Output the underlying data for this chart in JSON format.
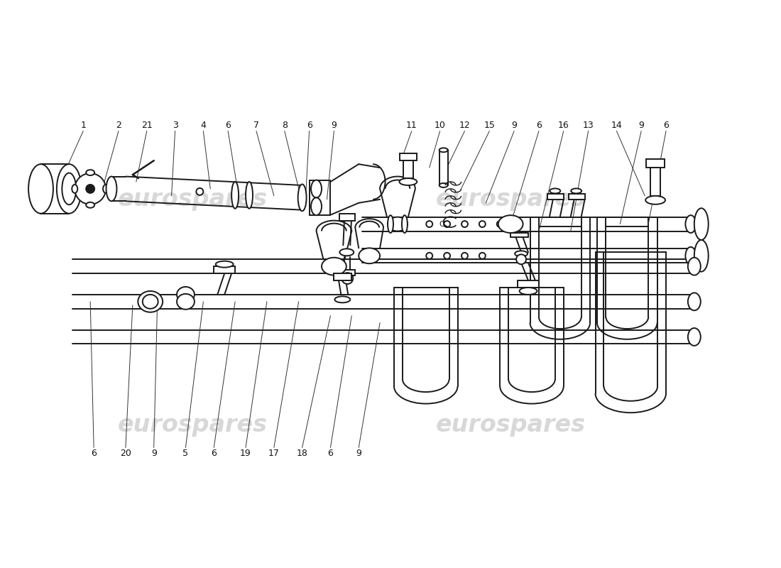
{
  "background_color": "#ffffff",
  "watermark_text": "eurospares",
  "watermark_color": "#d8d8d8",
  "line_color": "#1a1a1a",
  "line_width": 1.4,
  "label_fontsize": 9,
  "fig_width": 11.0,
  "fig_height": 8.0,
  "xlim": [
    0,
    110
  ],
  "ylim": [
    0,
    80
  ],
  "top_labels": [
    [
      "1",
      11.5,
      62.5,
      8.5,
      54.5
    ],
    [
      "2",
      16.5,
      62.5,
      14.5,
      54
    ],
    [
      "21",
      20.5,
      62.5,
      19.0,
      54
    ],
    [
      "3",
      24.5,
      62.5,
      24.0,
      52
    ],
    [
      "4",
      28.5,
      62.5,
      29.5,
      53
    ],
    [
      "6",
      32.0,
      62.5,
      33.5,
      52
    ],
    [
      "7",
      36.0,
      62.5,
      38.5,
      52
    ],
    [
      "8",
      40.0,
      62.5,
      42.5,
      51
    ],
    [
      "6",
      43.5,
      62.5,
      43.0,
      52
    ],
    [
      "9",
      47.0,
      62.5,
      46.0,
      51.5
    ],
    [
      "11",
      58.0,
      62.5,
      56.5,
      57
    ],
    [
      "10",
      62.0,
      62.5,
      60.5,
      56
    ],
    [
      "12",
      65.5,
      62.5,
      62.5,
      55
    ],
    [
      "15",
      69.0,
      62.5,
      65.0,
      53
    ],
    [
      "9",
      72.5,
      62.5,
      68.5,
      51
    ],
    [
      "6",
      76.0,
      62.5,
      72.0,
      48
    ],
    [
      "16",
      79.5,
      62.5,
      76.0,
      47
    ],
    [
      "13",
      83.0,
      62.5,
      80.5,
      47
    ],
    [
      "14",
      87.0,
      62.5,
      91.0,
      52
    ],
    [
      "9",
      90.5,
      62.5,
      87.5,
      48
    ],
    [
      "6",
      94.0,
      62.5,
      91.5,
      48
    ]
  ],
  "bottom_labels": [
    [
      "6",
      13.0,
      16.0,
      12.5,
      38
    ],
    [
      "20",
      17.5,
      16.0,
      18.5,
      37.5
    ],
    [
      "9",
      21.5,
      16.0,
      22.0,
      38
    ],
    [
      "5",
      26.0,
      16.0,
      28.5,
      38
    ],
    [
      "6",
      30.0,
      16.0,
      33.0,
      38
    ],
    [
      "19",
      34.5,
      16.0,
      37.5,
      38
    ],
    [
      "17",
      38.5,
      16.0,
      42.0,
      38
    ],
    [
      "18",
      42.5,
      16.0,
      46.5,
      36
    ],
    [
      "6",
      46.5,
      16.0,
      49.5,
      36
    ],
    [
      "9",
      50.5,
      16.0,
      53.5,
      35
    ]
  ]
}
